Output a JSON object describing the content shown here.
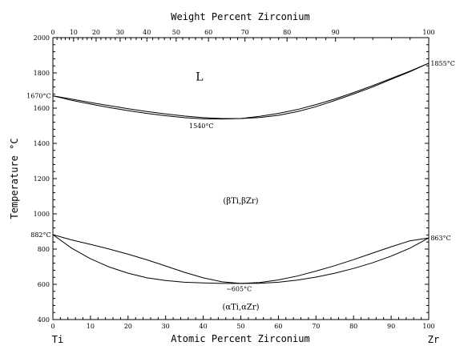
{
  "chart_data": {
    "type": "line",
    "title": "Weight Percent Zirconium",
    "xlabel": "Atomic Percent Zirconium",
    "ylabel": "Temperature °C",
    "xlim": [
      0,
      100
    ],
    "ylim": [
      400,
      2000
    ],
    "x_ticks": [
      "0",
      "10",
      "20",
      "30",
      "40",
      "50",
      "60",
      "70",
      "80",
      "90",
      "100"
    ],
    "y_ticks": [
      "400",
      "600",
      "800",
      "1000",
      "1200",
      "1400",
      "1600",
      "1800",
      "2000"
    ],
    "top_axis_ticks": [
      "0",
      "10",
      "20",
      "30",
      "40",
      "50",
      "60",
      "70",
      "80",
      "90",
      "100"
    ],
    "top_axis_positions_at_percent": [
      0,
      5.5,
      11.5,
      17.9,
      25.0,
      32.8,
      41.4,
      51.1,
      62.3,
      75.2,
      100
    ],
    "endpoint_left": "Ti",
    "endpoint_right": "Zr",
    "series": [
      {
        "x": [
          0,
          5,
          10,
          15,
          20,
          25,
          30,
          35,
          40,
          45,
          50,
          55,
          60,
          65,
          70,
          75,
          80,
          85,
          90,
          95,
          100
        ],
        "y": [
          1670,
          1651,
          1632,
          1614,
          1597,
          1581,
          1567,
          1555,
          1546,
          1541,
          1541,
          1547,
          1559,
          1580,
          1608,
          1643,
          1680,
          1719,
          1763,
          1807,
          1855
        ]
      },
      {
        "x": [
          0,
          5,
          10,
          15,
          20,
          25,
          30,
          35,
          40,
          45,
          50,
          55,
          60,
          65,
          70,
          75,
          80,
          85,
          90,
          95,
          100
        ],
        "y": [
          1670,
          1644,
          1623,
          1603,
          1586,
          1570,
          1557,
          1546,
          1539,
          1538,
          1541,
          1553,
          1570,
          1592,
          1620,
          1652,
          1688,
          1727,
          1768,
          1810,
          1855
        ]
      },
      {
        "x": [
          0,
          5,
          10,
          15,
          20,
          25,
          30,
          35,
          40,
          45,
          50,
          55,
          60,
          65,
          70,
          75,
          80,
          85,
          90,
          95,
          100
        ],
        "y": [
          882,
          805,
          745,
          698,
          663,
          637,
          622,
          612,
          608,
          605,
          605,
          606,
          612,
          624,
          641,
          663,
          690,
          722,
          760,
          805,
          863
        ]
      },
      {
        "x": [
          0,
          5,
          10,
          15,
          20,
          25,
          30,
          35,
          40,
          45,
          50,
          55,
          60,
          65,
          70,
          75,
          80,
          85,
          90,
          95,
          100
        ],
        "y": [
          882,
          852,
          827,
          800,
          771,
          739,
          704,
          668,
          637,
          614,
          605,
          610,
          625,
          647,
          675,
          706,
          740,
          777,
          813,
          847,
          863
        ]
      }
    ],
    "annotations": [
      {
        "text": "L",
        "x": 39,
        "y": 1770,
        "size": "big"
      },
      {
        "text": "(βTi,βZr)",
        "x": 50,
        "y": 1072,
        "size": "phase"
      },
      {
        "text": "(αTi,αZr)",
        "x": 50,
        "y": 470,
        "size": "phase"
      },
      {
        "text": "1670°C",
        "x": -0.5,
        "y": 1670,
        "size": "ann",
        "anchor": "end"
      },
      {
        "text": "1855°C",
        "x": 100.5,
        "y": 1855,
        "size": "ann",
        "anchor": "start"
      },
      {
        "text": "1540°C",
        "x": 39.5,
        "y": 1500,
        "size": "ann",
        "anchor": "middle"
      },
      {
        "text": "882°C",
        "x": -0.5,
        "y": 882,
        "size": "ann",
        "anchor": "end"
      },
      {
        "text": "863°C",
        "x": 100.5,
        "y": 863,
        "size": "ann",
        "anchor": "start"
      },
      {
        "text": "~605°C",
        "x": 49.5,
        "y": 575,
        "size": "ann",
        "anchor": "middle"
      }
    ],
    "grid": false
  }
}
